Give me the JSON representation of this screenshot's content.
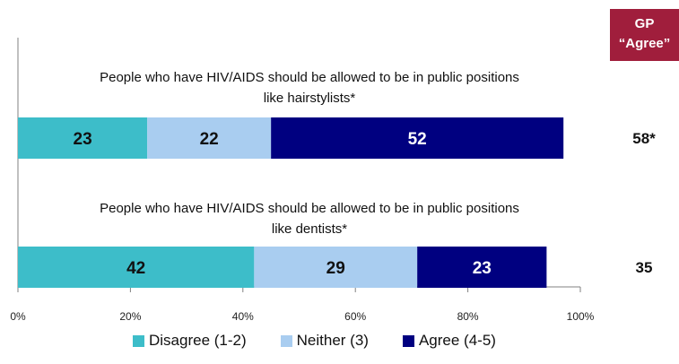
{
  "gp_header": {
    "line1": "GP",
    "line2": "“Agree”"
  },
  "chart_data": {
    "type": "bar",
    "orientation": "horizontal",
    "stacked": true,
    "categories": [
      "People who have HIV/AIDS should be allowed to be in public positions like hairstylists*",
      "People who have HIV/AIDS should be allowed to be in public positions like dentists*"
    ],
    "category_lines": [
      [
        "People who have HIV/AIDS should be allowed to be in public positions",
        "like hairstylists*"
      ],
      [
        "People who have HIV/AIDS should be allowed to be in public positions",
        "like dentists*"
      ]
    ],
    "series": [
      {
        "name": "Disagree (1-2)",
        "color": "#3dbdc9",
        "values": [
          23,
          42
        ]
      },
      {
        "name": "Neither (3)",
        "color": "#a9cdf0",
        "values": [
          22,
          29
        ]
      },
      {
        "name": "Agree (4-5)",
        "color": "#000080",
        "values": [
          52,
          23
        ]
      }
    ],
    "gp_agree": [
      "58*",
      "35"
    ],
    "xticks": [
      "0%",
      "20%",
      "40%",
      "60%",
      "80%",
      "100%"
    ],
    "xlim": [
      0,
      100
    ],
    "legend_position": "bottom",
    "grid": false
  }
}
